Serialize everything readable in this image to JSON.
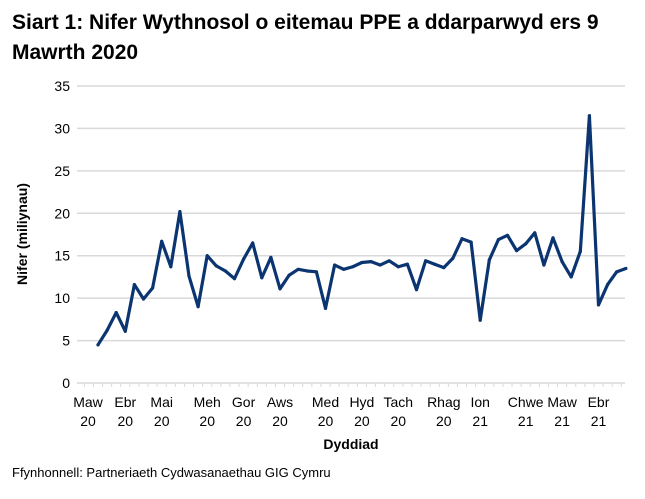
{
  "chart_data": {
    "type": "line",
    "title": "Siart 1: Nifer Wythnosol o eitemau PPE a ddarparwyd ers 9 Mawrth 2020",
    "xlabel": "Dyddiad",
    "ylabel": "Nifer (miliynau)",
    "ylim": [
      0,
      35
    ],
    "yticks": [
      0,
      5,
      10,
      15,
      20,
      25,
      30,
      35
    ],
    "grid": true,
    "line_color": "#0b3570",
    "x_ticks": [
      {
        "at": -1.1,
        "line1": "Maw",
        "line2": "20"
      },
      {
        "at": 3,
        "line1": "Ebr",
        "line2": "20"
      },
      {
        "at": 7,
        "line1": "Mai",
        "line2": "20"
      },
      {
        "at": 12,
        "line1": "Meh",
        "line2": "20"
      },
      {
        "at": 16,
        "line1": "Gor",
        "line2": "20"
      },
      {
        "at": 20,
        "line1": "Aws",
        "line2": "20"
      },
      {
        "at": 25,
        "line1": "Med",
        "line2": "20"
      },
      {
        "at": 29,
        "line1": "Hyd",
        "line2": "20"
      },
      {
        "at": 33,
        "line1": "Tach",
        "line2": "20"
      },
      {
        "at": 38,
        "line1": "Rhag",
        "line2": "20"
      },
      {
        "at": 42,
        "line1": "Ion",
        "line2": "21"
      },
      {
        "at": 47,
        "line1": "Chwe",
        "line2": "21"
      },
      {
        "at": 51,
        "line1": "Maw",
        "line2": "21"
      },
      {
        "at": 55,
        "line1": "Ebr",
        "line2": "21"
      }
    ],
    "values": [
      4.5,
      6.2,
      8.3,
      6.1,
      11.6,
      9.9,
      11.2,
      16.7,
      13.7,
      20.2,
      12.6,
      9.0,
      15.0,
      13.8,
      13.2,
      12.3,
      14.6,
      16.5,
      12.4,
      14.8,
      11.1,
      12.7,
      13.4,
      13.2,
      13.1,
      8.8,
      13.9,
      13.4,
      13.7,
      14.2,
      14.3,
      13.9,
      14.4,
      13.7,
      14.0,
      11.0,
      14.4,
      14.0,
      13.6,
      14.7,
      17.0,
      16.6,
      7.4,
      14.5,
      16.9,
      17.4,
      15.6,
      16.4,
      17.7,
      13.9,
      17.1,
      14.3,
      12.5,
      15.5,
      31.5,
      9.2,
      11.6,
      13.1,
      13.5
    ]
  },
  "source": "Ffynhonnell: Partneriaeth Cydwasanaethau GIG Cymru"
}
